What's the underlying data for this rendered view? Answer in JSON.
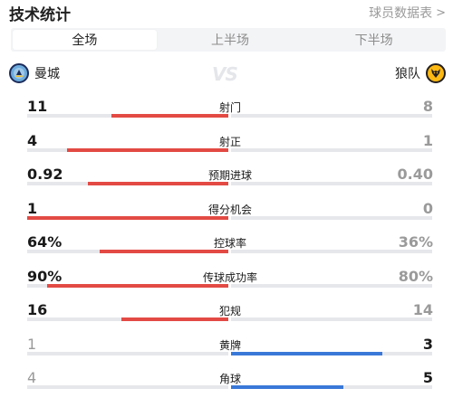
{
  "header": {
    "title": "技术统计",
    "player_link": "球员数据表",
    "chevron": ">"
  },
  "tabs": [
    {
      "label": "全场",
      "active": true
    },
    {
      "label": "上半场",
      "active": false
    },
    {
      "label": "下半场",
      "active": false
    }
  ],
  "teams": {
    "home": {
      "name": "曼城",
      "crest_icon": "manchester-city-crest-icon"
    },
    "away": {
      "name": "狼队",
      "crest_icon": "wolves-crest-icon"
    },
    "vs": "VS"
  },
  "colors": {
    "home_bar": "#e34a44",
    "away_bar": "#3a78d8",
    "track": "#e6e7eb"
  },
  "stats": [
    {
      "label": "射门",
      "home": "11",
      "away": "8",
      "home_share": 0.58,
      "away_share": 0.42,
      "leader": "home"
    },
    {
      "label": "射正",
      "home": "4",
      "away": "1",
      "home_share": 0.8,
      "away_share": 0.2,
      "leader": "home"
    },
    {
      "label": "预期进球",
      "home": "0.92",
      "away": "0.40",
      "home_share": 0.7,
      "away_share": 0.3,
      "leader": "home"
    },
    {
      "label": "得分机会",
      "home": "1",
      "away": "0",
      "home_share": 1.0,
      "away_share": 0.0,
      "leader": "home"
    },
    {
      "label": "控球率",
      "home": "64%",
      "away": "36%",
      "home_share": 0.64,
      "away_share": 0.36,
      "leader": "home"
    },
    {
      "label": "传球成功率",
      "home": "90%",
      "away": "80%",
      "home_share": 0.9,
      "away_share": 0.8,
      "leader": "home"
    },
    {
      "label": "犯规",
      "home": "16",
      "away": "14",
      "home_share": 0.53,
      "away_share": 0.47,
      "leader": "home"
    },
    {
      "label": "黄牌",
      "home": "1",
      "away": "3",
      "home_share": 0.25,
      "away_share": 0.75,
      "leader": "away"
    },
    {
      "label": "角球",
      "home": "4",
      "away": "5",
      "home_share": 0.44,
      "away_share": 0.56,
      "leader": "away"
    }
  ]
}
